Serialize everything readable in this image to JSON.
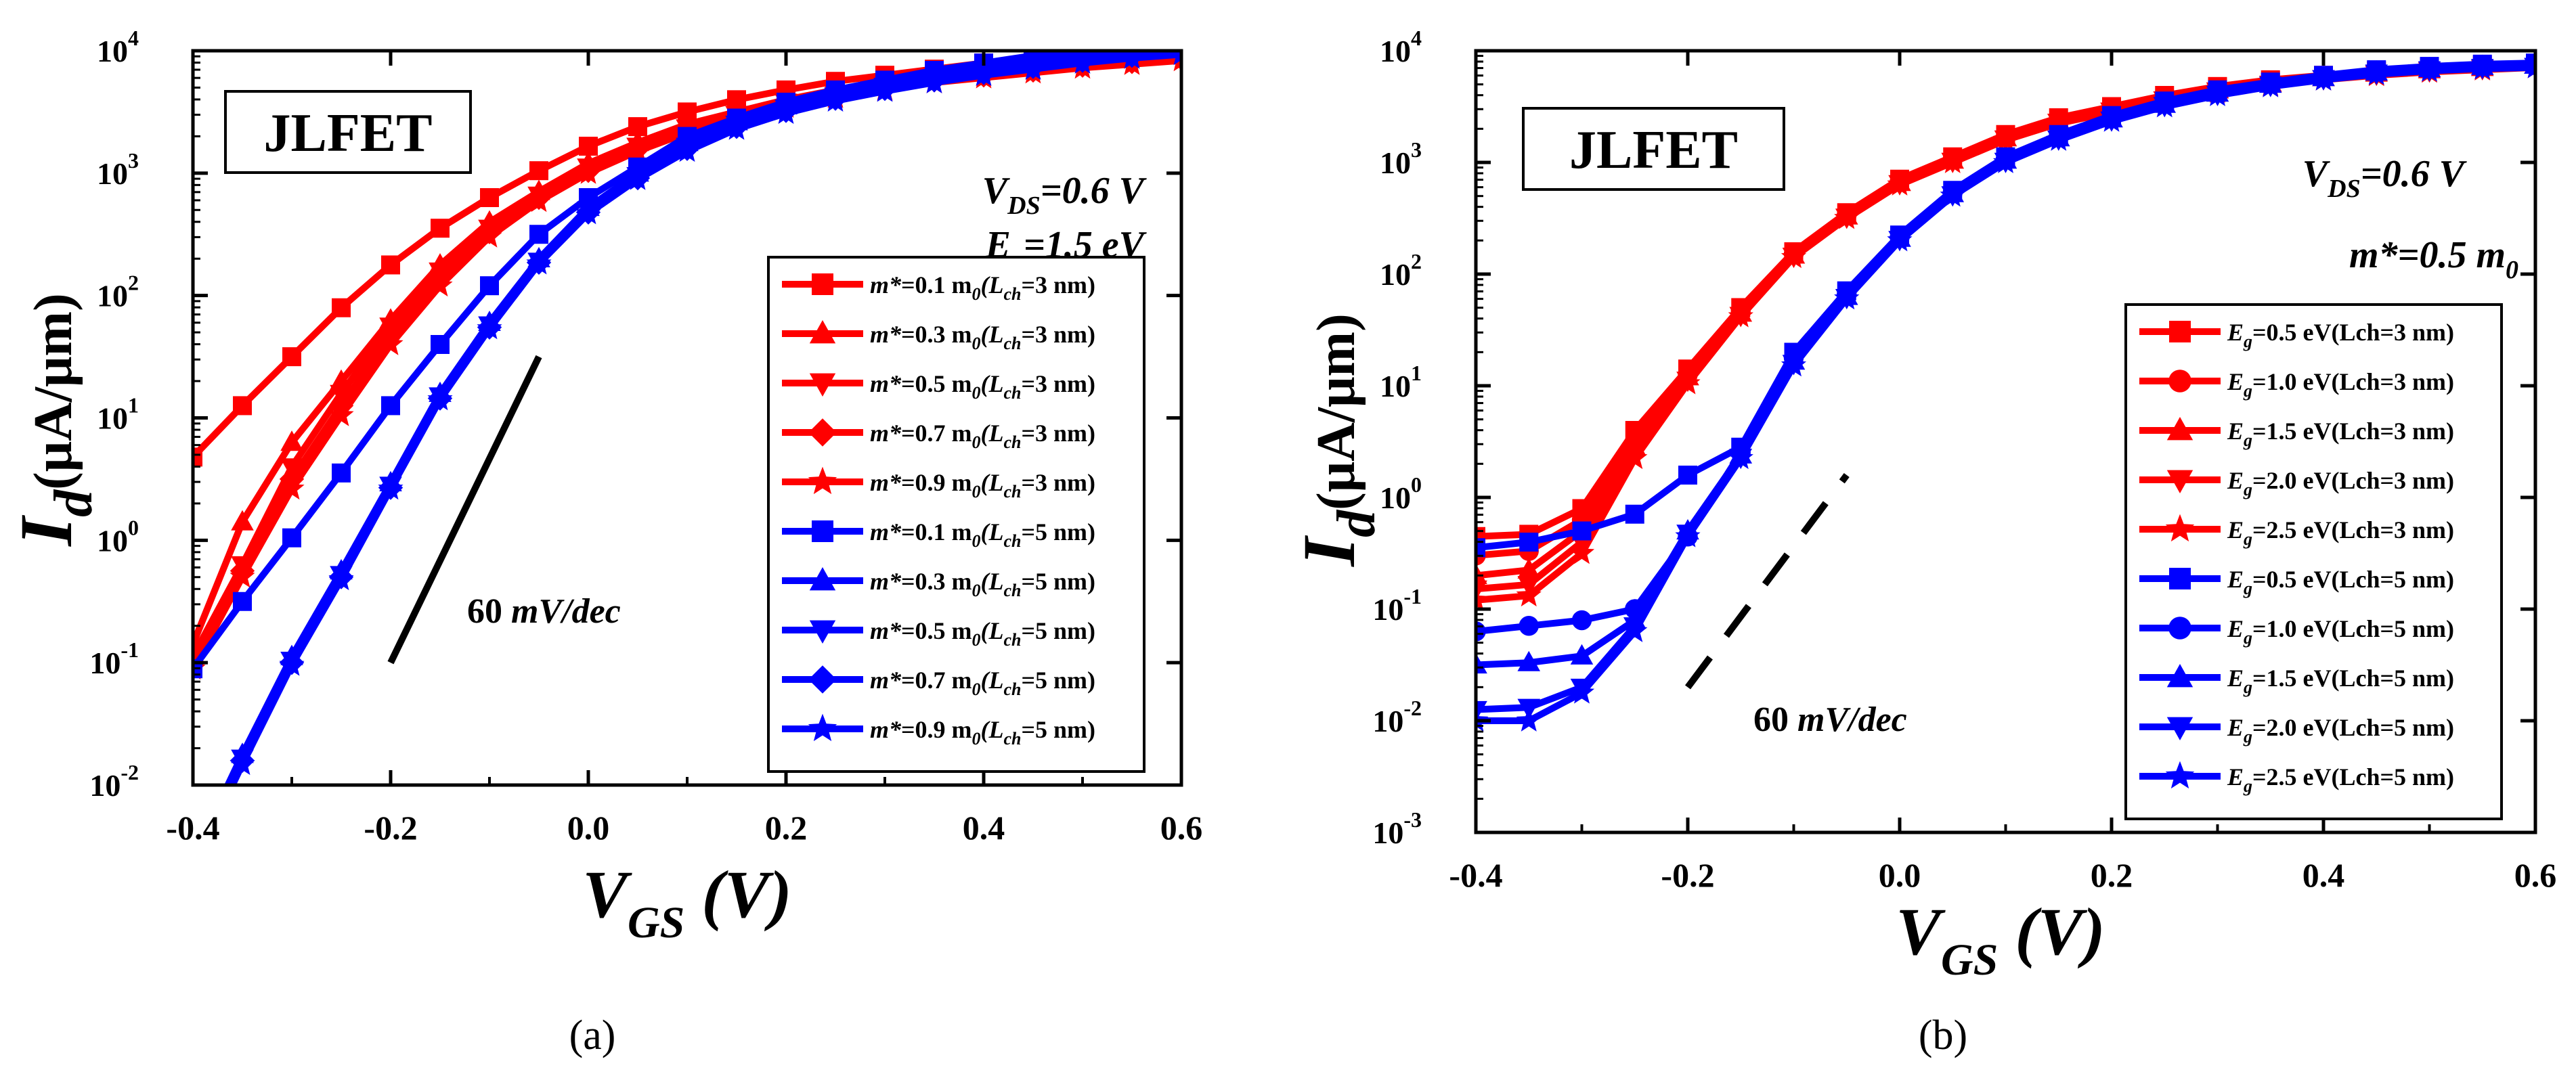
{
  "charts": [
    {
      "type": "line",
      "panel_label": "(a)",
      "title_box": "JLFET",
      "xlabel": {
        "main": "V",
        "sub": "GS",
        "unit": "(V)"
      },
      "ylabel": {
        "main": "I",
        "sub": "d",
        "unit": "(μA/μm)"
      },
      "xlim": [
        -0.4,
        0.6
      ],
      "ylim": [
        -2,
        4
      ],
      "y_scale": "log",
      "x_ticks": [
        "-0.4",
        "-0.2",
        "0.0",
        "0.2",
        "0.4",
        "0.6"
      ],
      "x_tick_values": [
        -0.4,
        -0.2,
        0.0,
        0.2,
        0.4,
        0.6
      ],
      "y_ticks": [
        "10",
        "10",
        "10",
        "10",
        "10",
        "10",
        "10"
      ],
      "y_tick_exps": [
        "-2",
        "-1",
        "0",
        "1",
        "2",
        "3",
        "4"
      ],
      "y_tick_values": [
        -2,
        -1,
        0,
        1,
        2,
        3,
        4
      ],
      "conditions": [
        {
          "main": "V",
          "sub": "DS",
          "val": "=0.6 V"
        },
        {
          "main": "E",
          "sub": "g",
          "val": "=1.5 eV"
        }
      ],
      "slope_label": {
        "value": "60 ",
        "unit": "mV/dec"
      },
      "slope_line": {
        "x": [
          -0.2,
          -0.05
        ],
        "y": [
          -1.0,
          1.5
        ]
      },
      "legend_position": "bottom-right",
      "x": [
        -0.4,
        -0.35,
        -0.3,
        -0.25,
        -0.2,
        -0.15,
        -0.1,
        -0.05,
        0.0,
        0.05,
        0.1,
        0.15,
        0.2,
        0.25,
        0.3,
        0.35,
        0.4,
        0.45,
        0.5,
        0.55,
        0.6
      ],
      "series": [
        {
          "name": "m*=0.1 m0(Lch=3 nm)",
          "color": "#ff0000",
          "marker": "square",
          "y": [
            0.68,
            1.1,
            1.5,
            1.9,
            2.25,
            2.55,
            2.8,
            3.02,
            3.22,
            3.38,
            3.5,
            3.6,
            3.68,
            3.75,
            3.8,
            3.85,
            3.9,
            3.94,
            3.97,
            4.0,
            4.03
          ]
        },
        {
          "name": "m*=0.3 m0(Lch=3 nm)",
          "color": "#ff0000",
          "marker": "triangle-up",
          "y": [
            -0.85,
            0.15,
            0.8,
            1.3,
            1.8,
            2.25,
            2.6,
            2.85,
            3.08,
            3.25,
            3.4,
            3.5,
            3.6,
            3.68,
            3.74,
            3.8,
            3.85,
            3.89,
            3.92,
            3.95,
            3.98
          ]
        },
        {
          "name": "m*=0.5 m0(Lch=3 nm)",
          "color": "#ff0000",
          "marker": "triangle-down",
          "y": [
            -0.95,
            -0.2,
            0.6,
            1.2,
            1.75,
            2.2,
            2.55,
            2.82,
            3.05,
            3.22,
            3.37,
            3.48,
            3.58,
            3.65,
            3.72,
            3.78,
            3.82,
            3.86,
            3.9,
            3.93,
            3.96
          ]
        },
        {
          "name": "m*=0.7 m0(Lch=3 nm)",
          "color": "#ff0000",
          "marker": "diamond",
          "y": [
            -1.0,
            -0.25,
            0.5,
            1.1,
            1.68,
            2.15,
            2.52,
            2.8,
            3.02,
            3.2,
            3.35,
            3.47,
            3.56,
            3.64,
            3.7,
            3.76,
            3.8,
            3.84,
            3.88,
            3.91,
            3.94
          ]
        },
        {
          "name": "m*=0.9 m0(Lch=3 nm)",
          "color": "#ff0000",
          "marker": "star",
          "y": [
            -1.05,
            -0.3,
            0.42,
            1.02,
            1.6,
            2.08,
            2.48,
            2.77,
            3.0,
            3.18,
            3.33,
            3.45,
            3.54,
            3.62,
            3.68,
            3.74,
            3.78,
            3.82,
            3.86,
            3.89,
            3.92
          ]
        },
        {
          "name": "m*=0.1 m0(Lch=5 nm)",
          "color": "#0000ff",
          "marker": "square",
          "y": [
            -1.05,
            -0.5,
            0.02,
            0.55,
            1.1,
            1.6,
            2.08,
            2.5,
            2.8,
            3.05,
            3.3,
            3.45,
            3.58,
            3.68,
            3.76,
            3.84,
            3.9,
            3.96,
            4.02,
            4.08,
            4.15
          ]
        },
        {
          "name": "m*=0.3 m0(Lch=5 nm)",
          "color": "#0000ff",
          "marker": "triangle-up",
          "y": [
            -2.6,
            -1.75,
            -0.95,
            -0.25,
            0.47,
            1.2,
            1.78,
            2.3,
            2.72,
            3.0,
            3.25,
            3.42,
            3.55,
            3.65,
            3.73,
            3.8,
            3.87,
            3.93,
            3.98,
            4.04,
            4.1
          ]
        },
        {
          "name": "m*=0.5 m0(Lch=5 nm)",
          "color": "#0000ff",
          "marker": "triangle-down",
          "y": [
            -2.62,
            -1.78,
            -0.98,
            -0.28,
            0.45,
            1.18,
            1.76,
            2.28,
            2.7,
            2.98,
            3.22,
            3.4,
            3.53,
            3.63,
            3.71,
            3.78,
            3.84,
            3.9,
            3.95,
            4.0,
            4.05
          ]
        },
        {
          "name": "m*=0.7 m0(Lch=5 nm)",
          "color": "#0000ff",
          "marker": "diamond",
          "y": [
            -2.65,
            -1.8,
            -1.0,
            -0.3,
            0.43,
            1.16,
            1.74,
            2.27,
            2.68,
            2.96,
            3.2,
            3.38,
            3.51,
            3.61,
            3.69,
            3.76,
            3.82,
            3.87,
            3.92,
            3.96,
            4.0
          ]
        },
        {
          "name": "m*=0.9 m0(Lch=5 nm)",
          "color": "#0000ff",
          "marker": "star",
          "y": [
            -2.68,
            -1.83,
            -1.02,
            -0.32,
            0.42,
            1.15,
            1.73,
            2.26,
            2.67,
            2.95,
            3.18,
            3.36,
            3.49,
            3.59,
            3.67,
            3.74,
            3.8,
            3.85,
            3.9,
            3.94,
            3.97
          ]
        }
      ]
    },
    {
      "type": "line",
      "panel_label": "(b)",
      "title_box": "JLFET",
      "xlabel": {
        "main": "V",
        "sub": "GS",
        "unit": "(V)"
      },
      "ylabel": {
        "main": "I",
        "sub": "d",
        "unit": "(μA/μm)"
      },
      "xlim": [
        -0.4,
        0.6
      ],
      "ylim": [
        -3,
        4
      ],
      "y_scale": "log",
      "x_ticks": [
        "-0.4",
        "-0.2",
        "0.0",
        "0.2",
        "0.4",
        "0.6"
      ],
      "x_tick_values": [
        -0.4,
        -0.2,
        0.0,
        0.2,
        0.4,
        0.6
      ],
      "y_ticks": [
        "10",
        "10",
        "10",
        "10",
        "10",
        "10",
        "10",
        "10"
      ],
      "y_tick_exps": [
        "-3",
        "-2",
        "-1",
        "0",
        "1",
        "2",
        "3",
        "4"
      ],
      "y_tick_values": [
        -3,
        -2,
        -1,
        0,
        1,
        2,
        3,
        4
      ],
      "conditions": [
        {
          "main": "V",
          "sub": "DS",
          "val": "=0.6 V"
        },
        {
          "main": "m*=0.5 m",
          "sub": "0",
          "val": ""
        }
      ],
      "slope_label": {
        "value": "60 ",
        "unit": "mV/dec"
      },
      "slope_line": {
        "x": [
          -0.2,
          -0.05
        ],
        "y": [
          -1.7,
          0.2
        ]
      },
      "slope_dashed": true,
      "legend_position": "bottom-right",
      "x": [
        -0.4,
        -0.35,
        -0.3,
        -0.25,
        -0.2,
        -0.15,
        -0.1,
        -0.05,
        0.0,
        0.05,
        0.1,
        0.15,
        0.2,
        0.25,
        0.3,
        0.35,
        0.4,
        0.45,
        0.5,
        0.55,
        0.6
      ],
      "series": [
        {
          "name": "Eg=0.5 eV(Lch=3 nm)",
          "color": "#ff0000",
          "marker": "square",
          "y": [
            -0.35,
            -0.33,
            -0.1,
            0.6,
            1.15,
            1.7,
            2.2,
            2.55,
            2.85,
            3.05,
            3.25,
            3.4,
            3.5,
            3.6,
            3.68,
            3.74,
            3.78,
            3.82,
            3.85,
            3.87,
            3.88
          ]
        },
        {
          "name": "Eg=1.0 eV(Lch=3 nm)",
          "color": "#ff0000",
          "marker": "circle",
          "y": [
            -0.52,
            -0.48,
            -0.2,
            0.5,
            1.1,
            1.67,
            2.18,
            2.53,
            2.83,
            3.03,
            3.23,
            3.38,
            3.48,
            3.58,
            3.66,
            3.72,
            3.77,
            3.81,
            3.84,
            3.86,
            3.88
          ]
        },
        {
          "name": "Eg=1.5 eV(Lch=3 nm)",
          "color": "#ff0000",
          "marker": "triangle-up",
          "y": [
            -0.7,
            -0.65,
            -0.3,
            0.45,
            1.08,
            1.65,
            2.17,
            2.52,
            2.82,
            3.02,
            3.22,
            3.37,
            3.47,
            3.57,
            3.65,
            3.71,
            3.76,
            3.8,
            3.83,
            3.85,
            3.87
          ]
        },
        {
          "name": "Eg=2.0 eV(Lch=3 nm)",
          "color": "#ff0000",
          "marker": "triangle-down",
          "y": [
            -0.82,
            -0.78,
            -0.4,
            0.4,
            1.05,
            1.63,
            2.16,
            2.51,
            2.81,
            3.01,
            3.21,
            3.36,
            3.46,
            3.56,
            3.64,
            3.7,
            3.75,
            3.79,
            3.82,
            3.84,
            3.86
          ]
        },
        {
          "name": "Eg=2.5 eV(Lch=3 nm)",
          "color": "#ff0000",
          "marker": "star",
          "y": [
            -0.92,
            -0.88,
            -0.5,
            0.35,
            1.02,
            1.62,
            2.15,
            2.5,
            2.8,
            3.0,
            3.2,
            3.35,
            3.45,
            3.55,
            3.63,
            3.69,
            3.74,
            3.78,
            3.81,
            3.83,
            3.85
          ]
        },
        {
          "name": "Eg=0.5 eV(Lch=5 nm)",
          "color": "#0000ff",
          "marker": "square",
          "y": [
            -0.45,
            -0.4,
            -0.3,
            -0.15,
            0.2,
            0.45,
            1.3,
            1.85,
            2.35,
            2.75,
            3.05,
            3.25,
            3.42,
            3.55,
            3.65,
            3.72,
            3.78,
            3.83,
            3.86,
            3.88,
            3.89
          ]
        },
        {
          "name": "Eg=1.0 eV(Lch=5 nm)",
          "color": "#0000ff",
          "marker": "circle",
          "y": [
            -1.2,
            -1.15,
            -1.1,
            -1.0,
            -0.35,
            0.4,
            1.25,
            1.82,
            2.33,
            2.73,
            3.03,
            3.23,
            3.4,
            3.53,
            3.63,
            3.71,
            3.77,
            3.82,
            3.85,
            3.87,
            3.88
          ]
        },
        {
          "name": "Eg=1.5 eV(Lch=5 nm)",
          "color": "#0000ff",
          "marker": "triangle-up",
          "y": [
            -1.5,
            -1.48,
            -1.42,
            -1.1,
            -0.3,
            0.38,
            1.22,
            1.8,
            2.32,
            2.72,
            3.02,
            3.22,
            3.39,
            3.52,
            3.62,
            3.7,
            3.76,
            3.81,
            3.84,
            3.86,
            3.87
          ]
        },
        {
          "name": "Eg=2.0 eV(Lch=5 nm)",
          "color": "#0000ff",
          "marker": "triangle-down",
          "y": [
            -1.9,
            -1.88,
            -1.7,
            -1.15,
            -0.32,
            0.36,
            1.2,
            1.79,
            2.31,
            2.71,
            3.01,
            3.21,
            3.38,
            3.51,
            3.61,
            3.69,
            3.75,
            3.8,
            3.83,
            3.85,
            3.86
          ]
        },
        {
          "name": "Eg=2.5 eV(Lch=5 nm)",
          "color": "#0000ff",
          "marker": "star",
          "y": [
            -2.0,
            -2.0,
            -1.75,
            -1.2,
            -0.35,
            0.35,
            1.18,
            1.78,
            2.3,
            2.7,
            3.0,
            3.2,
            3.37,
            3.5,
            3.6,
            3.68,
            3.74,
            3.79,
            3.82,
            3.84,
            3.85
          ]
        }
      ]
    }
  ],
  "legend_a": [
    {
      "pre": "m*",
      "mid": "=0.1 m",
      "sub": "0",
      "paren_open": "(L",
      "sub2": "ch",
      "tail": "=3 nm)"
    },
    {
      "pre": "m*",
      "mid": "=0.3 m",
      "sub": "0",
      "paren_open": "(L",
      "sub2": "ch",
      "tail": "=3 nm)"
    },
    {
      "pre": "m*",
      "mid": "=0.5 m",
      "sub": "0",
      "paren_open": "(L",
      "sub2": "ch",
      "tail": "=3 nm)"
    },
    {
      "pre": "m*",
      "mid": "=0.7 m",
      "sub": "0",
      "paren_open": "(L",
      "sub2": "ch",
      "tail": "=3 nm)"
    },
    {
      "pre": "m*",
      "mid": "=0.9 m",
      "sub": "0",
      "paren_open": "(L",
      "sub2": "ch",
      "tail": "=3 nm)"
    },
    {
      "pre": "m*",
      "mid": "=0.1 m",
      "sub": "0",
      "paren_open": "(L",
      "sub2": "ch",
      "tail": "=5 nm)"
    },
    {
      "pre": "m*",
      "mid": "=0.3 m",
      "sub": "0",
      "paren_open": "(L",
      "sub2": "ch",
      "tail": "=5 nm)"
    },
    {
      "pre": "m*",
      "mid": "=0.5 m",
      "sub": "0",
      "paren_open": "(L",
      "sub2": "ch",
      "tail": "=5 nm)"
    },
    {
      "pre": "m*",
      "mid": "=0.7 m",
      "sub": "0",
      "paren_open": "(L",
      "sub2": "ch",
      "tail": "=5 nm)"
    },
    {
      "pre": "m*",
      "mid": "=0.9 m",
      "sub": "0",
      "paren_open": "(L",
      "sub2": "ch",
      "tail": "=5 nm)"
    }
  ],
  "legend_b": [
    {
      "pre": "E",
      "sub": "g",
      "mid": "=0.5 eV(Lch=3 nm)"
    },
    {
      "pre": "E",
      "sub": "g",
      "mid": "=1.0 eV(Lch=3 nm)"
    },
    {
      "pre": "E",
      "sub": "g",
      "mid": "=1.5 eV(Lch=3 nm)"
    },
    {
      "pre": "E",
      "sub": "g",
      "mid": "=2.0 eV(Lch=3 nm)"
    },
    {
      "pre": "E",
      "sub": "g",
      "mid": "=2.5 eV(Lch=3 nm)"
    },
    {
      "pre": "E",
      "sub": "g",
      "mid": "=0.5 eV(Lch=5 nm)"
    },
    {
      "pre": "E",
      "sub": "g",
      "mid": "=1.0 eV(Lch=5 nm)"
    },
    {
      "pre": "E",
      "sub": "g",
      "mid": "=1.5 eV(Lch=5 nm)"
    },
    {
      "pre": "E",
      "sub": "g",
      "mid": "=2.0 eV(Lch=5 nm)"
    },
    {
      "pre": "E",
      "sub": "g",
      "mid": "=2.5 eV(Lch=5 nm)"
    }
  ]
}
